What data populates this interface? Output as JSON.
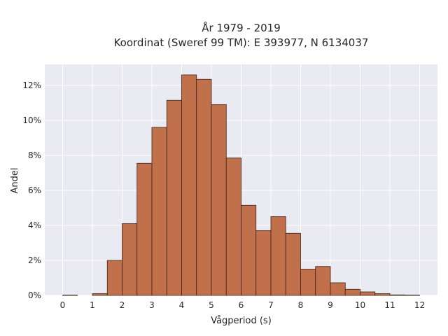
{
  "chart_data": {
    "type": "bar",
    "title_line1": "År 1979 - 2019",
    "title_line2": "Koordinat (Sweref 99 TM): E 393977, N 6134037",
    "xlabel": "Vågperiod (s)",
    "ylabel": "Andel",
    "bin_width": 0.5,
    "bin_starts": [
      0,
      0.5,
      1,
      1.5,
      2,
      2.5,
      3,
      3.5,
      4,
      4.5,
      5,
      5.5,
      6,
      6.5,
      7,
      7.5,
      8,
      8.5,
      9,
      9.5,
      10,
      10.5,
      11,
      11.5
    ],
    "values": [
      0.02,
      0.0,
      0.1,
      2.0,
      4.1,
      7.55,
      9.6,
      11.15,
      12.6,
      12.35,
      10.9,
      7.85,
      5.15,
      3.7,
      4.5,
      3.55,
      1.5,
      1.65,
      0.72,
      0.35,
      0.2,
      0.1,
      0.03,
      0.02
    ],
    "xlim": [
      -0.6,
      12.6
    ],
    "ylim": [
      0,
      13.2
    ],
    "x_ticks": [
      0,
      1,
      2,
      3,
      4,
      5,
      6,
      7,
      8,
      9,
      10,
      11,
      12
    ],
    "x_tick_labels": [
      "0",
      "1",
      "2",
      "3",
      "4",
      "5",
      "6",
      "7",
      "8",
      "9",
      "10",
      "11",
      "12"
    ],
    "y_ticks": [
      0,
      2,
      4,
      6,
      8,
      10,
      12
    ],
    "y_tick_labels": [
      "0%",
      "2%",
      "4%",
      "6%",
      "8%",
      "10%",
      "12%"
    ],
    "grid": true,
    "colors": {
      "bar_fill": "#c0714b",
      "bar_edge": "#3a2418",
      "plot_background": "#eaeaf2",
      "grid": "#ffffff"
    }
  }
}
